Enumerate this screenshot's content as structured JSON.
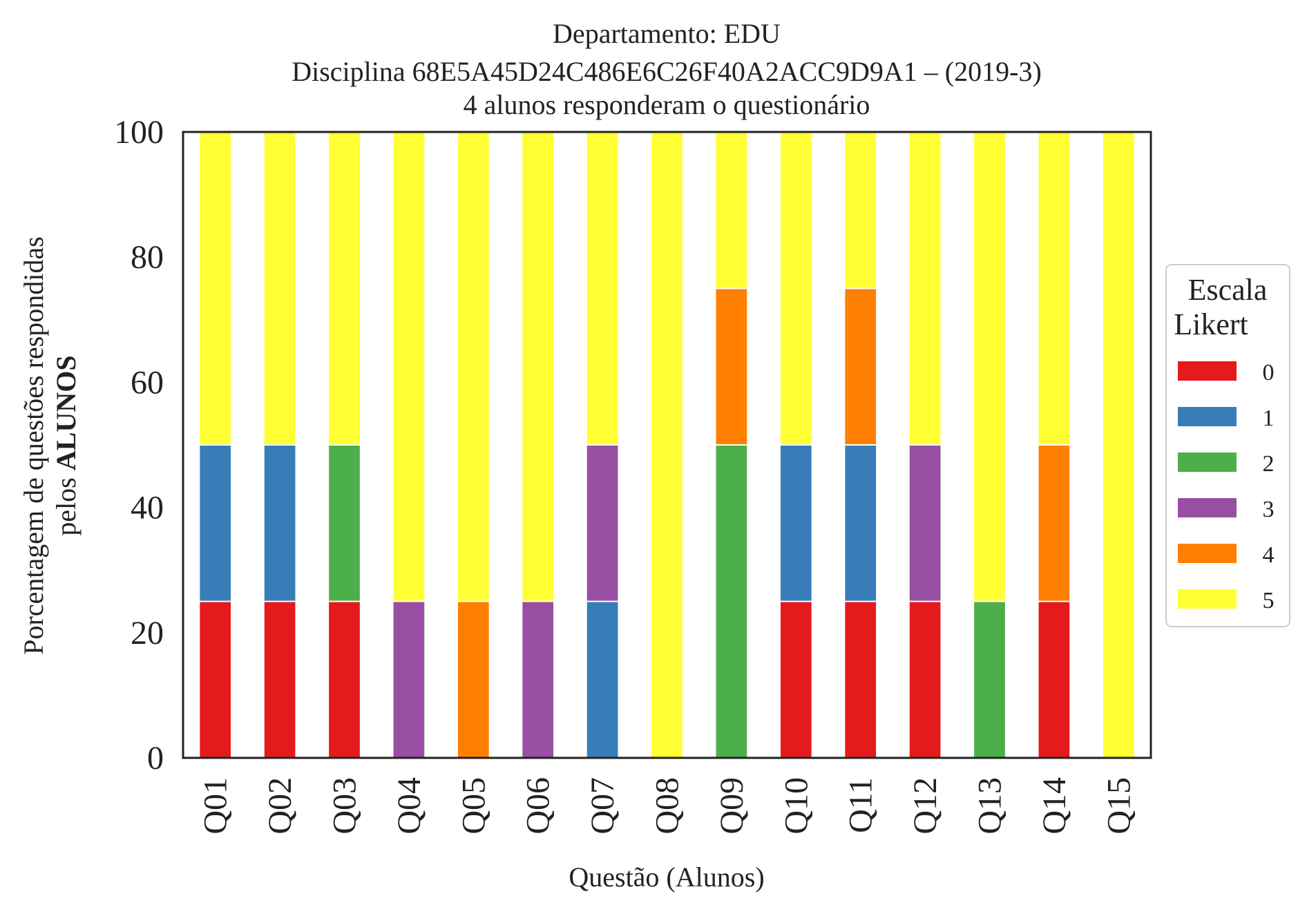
{
  "chart_data": {
    "type": "bar",
    "stacked": true,
    "title_lines": [
      "Departamento: EDU",
      "Disciplina 68E5A45D24C486E6C26F40A2ACC9D9A1 – (2019-3)",
      "4 alunos responderam o questionário"
    ],
    "xlabel": "Questão (Alunos)",
    "ylabel_line1": "Porcentagem de questões respondidas",
    "ylabel_line2_prefix": "pelos ",
    "ylabel_line2_bold": "ALUNOS",
    "ylim": [
      0,
      100
    ],
    "yticks": [
      "0",
      "20",
      "40",
      "60",
      "80",
      "100"
    ],
    "grid": false,
    "categories": [
      "Q01",
      "Q02",
      "Q03",
      "Q04",
      "Q05",
      "Q06",
      "Q07",
      "Q08",
      "Q09",
      "Q10",
      "Q11",
      "Q12",
      "Q13",
      "Q14",
      "Q15"
    ],
    "legend": {
      "title_line1": "Escala",
      "title_line2": "Likert",
      "placement": "center-right outside"
    },
    "series": [
      {
        "name": "0",
        "color": "#e41a1c",
        "values": [
          25,
          25,
          25,
          0,
          0,
          0,
          0,
          0,
          0,
          25,
          25,
          25,
          0,
          25,
          0
        ]
      },
      {
        "name": "1",
        "color": "#377eb8",
        "values": [
          25,
          25,
          0,
          0,
          0,
          0,
          25,
          0,
          0,
          25,
          25,
          0,
          0,
          0,
          0
        ]
      },
      {
        "name": "2",
        "color": "#4daf4a",
        "values": [
          0,
          0,
          25,
          0,
          0,
          0,
          0,
          0,
          50,
          0,
          0,
          0,
          25,
          0,
          0
        ]
      },
      {
        "name": "3",
        "color": "#984ea3",
        "values": [
          0,
          0,
          0,
          25,
          0,
          25,
          25,
          0,
          0,
          0,
          0,
          25,
          0,
          0,
          0
        ]
      },
      {
        "name": "4",
        "color": "#ff7f00",
        "values": [
          0,
          0,
          0,
          0,
          25,
          0,
          0,
          0,
          25,
          0,
          25,
          0,
          0,
          25,
          0
        ]
      },
      {
        "name": "5",
        "color": "#ffff33",
        "values": [
          50,
          50,
          50,
          75,
          75,
          75,
          50,
          100,
          25,
          50,
          25,
          50,
          75,
          50,
          100
        ]
      }
    ]
  }
}
